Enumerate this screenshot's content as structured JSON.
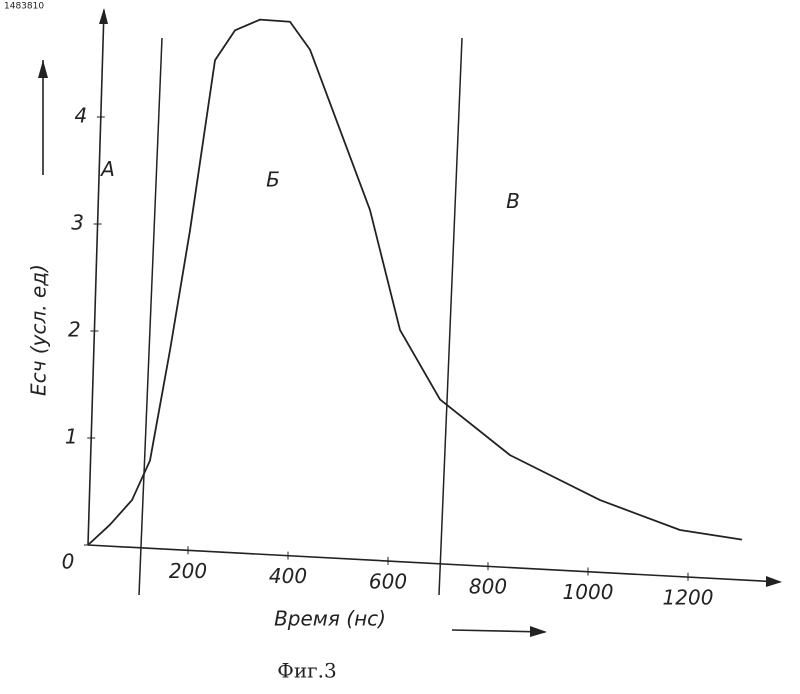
{
  "doc_number": "1483810",
  "chart_data": {
    "type": "line",
    "xlabel": "Время (нс)",
    "ylabel": "Eсч (усл. ед)",
    "caption": "Фиг.3",
    "x": [
      0,
      44,
      88,
      124,
      164,
      204,
      254,
      294,
      344,
      404,
      444,
      504,
      564,
      624,
      704,
      844,
      1024,
      1184,
      1308
    ],
    "series": [
      {
        "name": "Eсч",
        "color": "#222222",
        "values": [
          0,
          0.19,
          0.42,
          0.79,
          1.82,
          2.94,
          4.53,
          4.81,
          4.91,
          4.89,
          4.63,
          3.88,
          3.13,
          2.01,
          1.36,
          0.84,
          0.42,
          0.14,
          0.05
        ]
      }
    ],
    "xlim": [
      0,
      1350
    ],
    "ylim": [
      0,
      5
    ],
    "xticks": [
      200,
      400,
      600,
      800,
      1000,
      1200
    ],
    "yticks": [
      0,
      1,
      2,
      3,
      4
    ],
    "region_boundaries": [
      100,
      700
    ],
    "regions": [
      {
        "label": "А",
        "x": 40,
        "y": 3.5
      },
      {
        "label": "Б",
        "x": 370,
        "y": 3.4
      },
      {
        "label": "В",
        "x": 850,
        "y": 3.2
      }
    ],
    "grid": false
  }
}
